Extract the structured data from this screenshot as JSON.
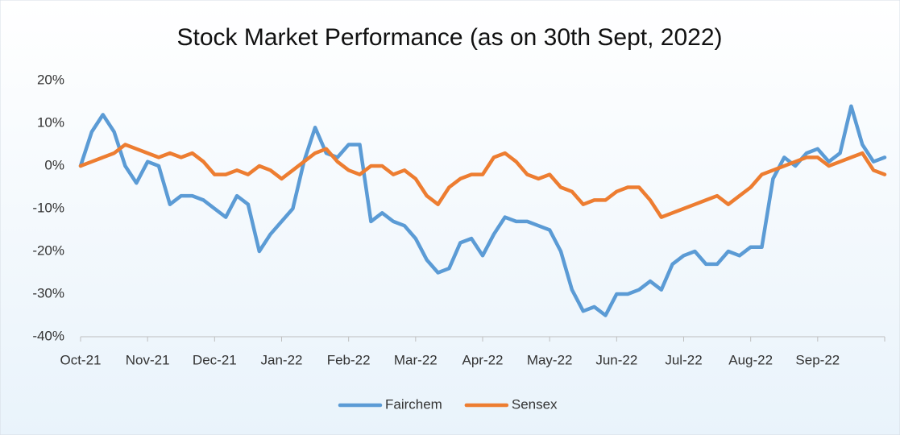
{
  "chart_data": {
    "type": "line",
    "title": "Stock Market Performance (as on 30th Sept, 2022)",
    "categories": [
      "Oct-21",
      null,
      null,
      null,
      null,
      null,
      "Nov-21",
      null,
      null,
      null,
      null,
      null,
      "Dec-21",
      null,
      null,
      null,
      null,
      null,
      "Jan-22",
      null,
      null,
      null,
      null,
      null,
      "Feb-22",
      null,
      null,
      null,
      null,
      null,
      "Mar-22",
      null,
      null,
      null,
      null,
      null,
      "Apr-22",
      null,
      null,
      null,
      null,
      null,
      "May-22",
      null,
      null,
      null,
      null,
      null,
      "Jun-22",
      null,
      null,
      null,
      null,
      null,
      "Jul-22",
      null,
      null,
      null,
      null,
      null,
      "Aug-22",
      null,
      null,
      null,
      null,
      null,
      "Sep-22",
      null,
      null,
      null,
      null,
      null,
      null
    ],
    "series": [
      {
        "name": "Fairchem",
        "color": "#5b9bd5",
        "values": [
          0,
          8,
          12,
          8,
          0,
          -4,
          1,
          0,
          -9,
          -7,
          -7,
          -8,
          -10,
          -12,
          -7,
          -9,
          -20,
          -16,
          -13,
          -10,
          1,
          9,
          3,
          2,
          5,
          5,
          -13,
          -11,
          -13,
          -14,
          -17,
          -22,
          -25,
          -24,
          -18,
          -17,
          -21,
          -16,
          -12,
          -13,
          -13,
          -14,
          -15,
          -20,
          -29,
          -34,
          -33,
          -35,
          -30,
          -30,
          -29,
          -27,
          -29,
          -23,
          -21,
          -20,
          -23,
          -23,
          -20,
          -21,
          -19,
          -19,
          -3,
          2,
          0,
          3,
          4,
          1,
          3,
          14,
          5,
          1,
          2
        ]
      },
      {
        "name": "Sensex",
        "color": "#ed7d31",
        "values": [
          0,
          1,
          2,
          3,
          5,
          4,
          3,
          2,
          3,
          2,
          3,
          1,
          -2,
          -2,
          -1,
          -2,
          0,
          -1,
          -3,
          -1,
          1,
          3,
          4,
          1,
          -1,
          -2,
          0,
          0,
          -2,
          -1,
          -3,
          -7,
          -9,
          -5,
          -3,
          -2,
          -2,
          2,
          3,
          1,
          -2,
          -3,
          -2,
          -5,
          -6,
          -9,
          -8,
          -8,
          -6,
          -5,
          -5,
          -8,
          -12,
          -11,
          -10,
          -9,
          -8,
          -7,
          -9,
          -7,
          -5,
          -2,
          -1,
          0,
          1,
          2,
          2,
          0,
          1,
          2,
          3,
          -1,
          -2
        ]
      }
    ],
    "ylim": [
      -40,
      20
    ],
    "yticks": [
      {
        "value": -40,
        "label": "-40%"
      },
      {
        "value": -30,
        "label": "-30%"
      },
      {
        "value": -20,
        "label": "-20%"
      },
      {
        "value": -10,
        "label": "-10%"
      },
      {
        "value": 0,
        "label": "0%"
      },
      {
        "value": 10,
        "label": "10%"
      },
      {
        "value": 20,
        "label": "20%"
      }
    ],
    "grid": false,
    "legend": "bottom"
  }
}
